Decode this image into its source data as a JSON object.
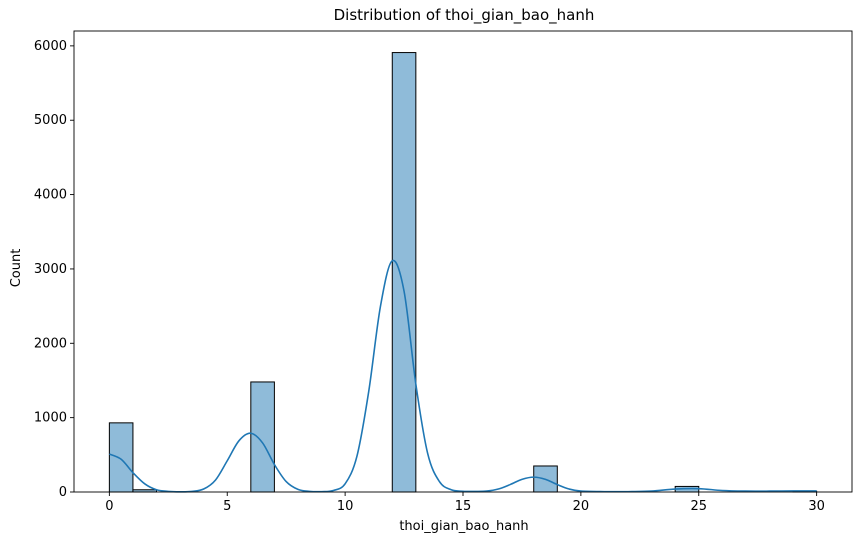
{
  "chart_data": {
    "type": "bar",
    "title": "Distribution of thoi_gian_bao_hanh",
    "xlabel": "thoi_gian_bao_hanh",
    "ylabel": "Count",
    "xlim": [
      -1.5,
      31.5
    ],
    "ylim": [
      0,
      6200
    ],
    "xticks": [
      0,
      5,
      10,
      15,
      20,
      25,
      30
    ],
    "yticks": [
      0,
      1000,
      2000,
      3000,
      4000,
      5000,
      6000
    ],
    "bin_width": 1,
    "bins": [
      {
        "x0": 0,
        "count": 930
      },
      {
        "x0": 1,
        "count": 30
      },
      {
        "x0": 6,
        "count": 1480
      },
      {
        "x0": 12,
        "count": 5910
      },
      {
        "x0": 18,
        "count": 350
      },
      {
        "x0": 24,
        "count": 75
      },
      {
        "x0": 29,
        "count": 10
      }
    ],
    "kde": {
      "x": [
        0,
        0.5,
        1,
        1.5,
        2,
        2.5,
        3,
        3.5,
        4,
        4.5,
        5,
        5.5,
        6,
        6.5,
        7,
        7.5,
        8,
        8.5,
        9,
        9.5,
        10,
        10.5,
        11,
        11.5,
        12,
        12.5,
        13,
        13.5,
        14,
        14.5,
        15,
        15.5,
        16,
        16.5,
        17,
        17.5,
        18,
        18.5,
        19,
        19.5,
        20,
        21,
        22,
        23,
        24,
        25,
        26,
        27,
        28,
        29,
        30
      ],
      "y": [
        510,
        440,
        260,
        110,
        30,
        8,
        3,
        8,
        40,
        160,
        420,
        690,
        790,
        660,
        370,
        140,
        35,
        8,
        5,
        20,
        110,
        480,
        1350,
        2500,
        3110,
        2700,
        1450,
        520,
        140,
        30,
        10,
        8,
        12,
        40,
        100,
        170,
        200,
        170,
        100,
        40,
        12,
        5,
        5,
        12,
        40,
        45,
        20,
        12,
        12,
        15,
        15
      ]
    },
    "colors": {
      "bar_fill": "#8fbbd9",
      "bar_edge": "#000000",
      "kde_line": "#1f77b4"
    },
    "grid": false,
    "legend": "none"
  }
}
